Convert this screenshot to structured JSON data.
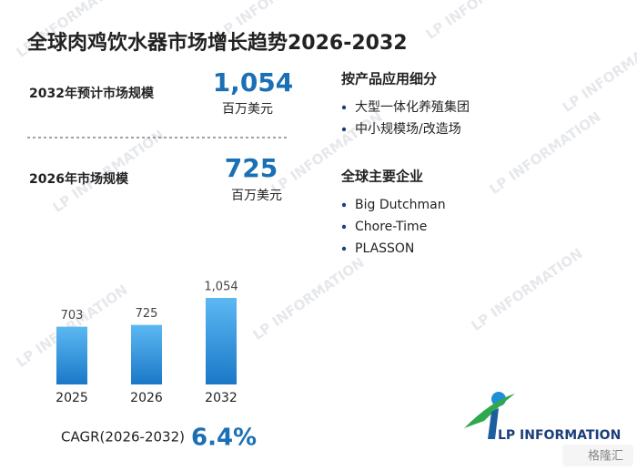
{
  "title": "全球肉鸡饮水器市场增长趋势2026-2032",
  "stats": [
    {
      "label": "2032年预计市场规模",
      "value": "1,054",
      "unit": "百万美元"
    },
    {
      "label": "2026年市场规模",
      "value": "725",
      "unit": "百万美元"
    }
  ],
  "lists": [
    {
      "heading": "按产品应用细分",
      "items": [
        "大型一体化养殖集团",
        "中小规模场/改造场"
      ]
    },
    {
      "heading": "全球主要企业",
      "items": [
        "Big Dutchman",
        "Chore-Time",
        "PLASSON"
      ]
    }
  ],
  "chart_data": {
    "type": "bar",
    "categories": [
      "2025",
      "2026",
      "2032"
    ],
    "values": [
      703,
      725,
      1054
    ],
    "value_labels": [
      "703",
      "725",
      "1,054"
    ],
    "color": "#1a78c8"
  },
  "cagr": {
    "label": "CAGR(2026-2032)",
    "value": "6.4%"
  },
  "logo": "LP INFORMATION",
  "watermark": "LP INFORMATION",
  "source": "格隆汇"
}
